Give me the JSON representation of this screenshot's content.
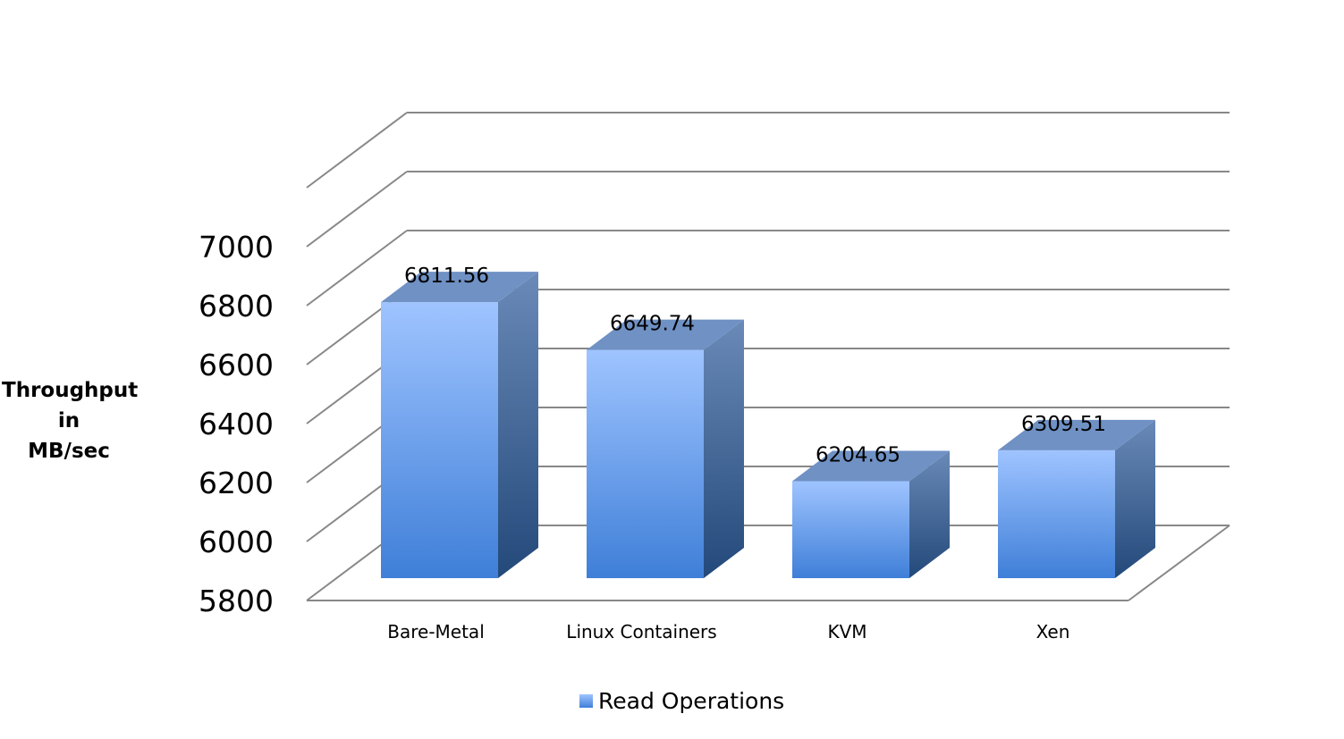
{
  "chart_data": {
    "type": "bar",
    "title": "",
    "xlabel": "",
    "ylabel": [
      "Throughput",
      "in",
      "MB/sec"
    ],
    "categories": [
      "Bare-Metal",
      "Linux Containers",
      "KVM",
      "Xen"
    ],
    "series": [
      {
        "name": "Read Operations",
        "values": [
          6811.56,
          6649.74,
          6204.65,
          6309.51
        ],
        "labels": [
          "6811.56",
          "6649.74",
          "6204.65",
          "6309.51"
        ]
      }
    ],
    "ylim": [
      5800,
      7000
    ],
    "yticks": [
      "5800",
      "6000",
      "6200",
      "6400",
      "6600",
      "6800",
      "7000"
    ],
    "grid": true,
    "legend_position": "bottom",
    "colors": {
      "bar_front_top": "#9fc4ff",
      "bar_front_bottom": "#3f7fd8",
      "bar_side_top": "#6a8ab8",
      "bar_side_bottom": "#23497a",
      "bar_top": "#6f91c4",
      "grid": "#888888"
    }
  }
}
